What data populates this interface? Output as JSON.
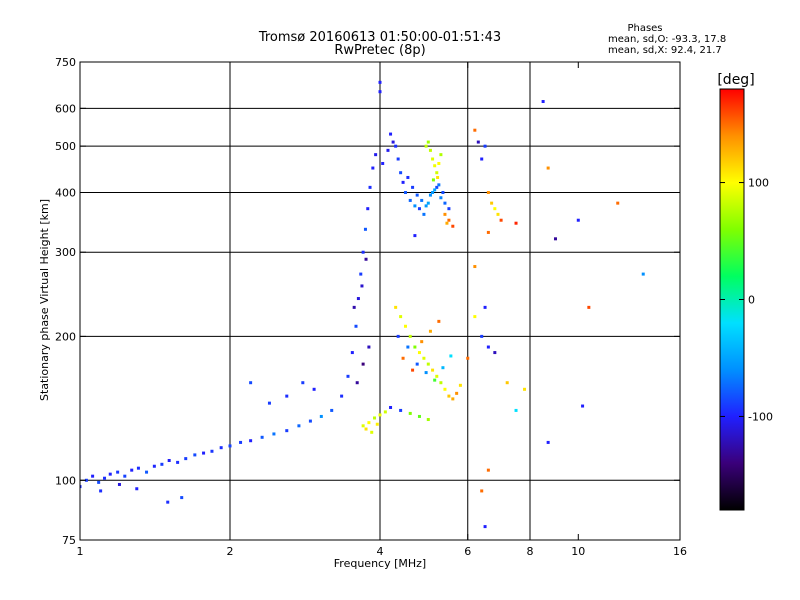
{
  "chart_data": {
    "type": "scatter",
    "title": "Tromsø 20160613 01:50:00-01:51:43",
    "subtitle": "RwPretec (8p)",
    "xlabel": "Frequency [MHz]",
    "ylabel": "Stationary phase Virtual Height [km]",
    "x_scale": "log",
    "y_scale": "log",
    "xlim": [
      1,
      16
    ],
    "ylim": [
      75,
      750
    ],
    "x_ticks": [
      1,
      2,
      4,
      6,
      8,
      10,
      16
    ],
    "x_tick_labels": [
      "1",
      "2",
      "4",
      "6",
      "8",
      "10",
      "16"
    ],
    "x_gridlines": [
      2,
      4,
      6,
      8
    ],
    "y_ticks": [
      75,
      100,
      200,
      300,
      400,
      500,
      600,
      750
    ],
    "y_tick_labels": [
      "75",
      "100",
      "200",
      "300",
      "400",
      "500",
      "600",
      "750"
    ],
    "y_gridlines": [
      100,
      200,
      300,
      400,
      500,
      600
    ],
    "grid": true,
    "colorbar": {
      "label": "[deg]",
      "range": [
        -180,
        180
      ],
      "ticks": [
        100,
        0,
        -100
      ],
      "tick_labels": [
        "100",
        "0",
        "-100"
      ],
      "colormap": [
        "#000000",
        "#3a007a",
        "#2020ff",
        "#0090ff",
        "#00e0ff",
        "#00ff60",
        "#80ff00",
        "#ffff00",
        "#ff9000",
        "#ff0000"
      ]
    },
    "legend": {
      "header": "Phases",
      "lines": [
        "mean, sd,O: -93.3, 17.8",
        "mean, sd,X:  92.4, 21.7"
      ]
    },
    "series": [
      {
        "points": [
          [
            1.0,
            97,
            -95
          ],
          [
            1.03,
            100,
            -90
          ],
          [
            1.06,
            102,
            -100
          ],
          [
            1.09,
            99,
            -85
          ],
          [
            1.12,
            101,
            -95
          ],
          [
            1.15,
            103,
            -100
          ],
          [
            1.19,
            104,
            -92
          ],
          [
            1.23,
            102,
            -88
          ],
          [
            1.27,
            105,
            -100
          ],
          [
            1.31,
            106,
            -95
          ],
          [
            1.36,
            104,
            -80
          ],
          [
            1.41,
            107,
            -98
          ],
          [
            1.46,
            108,
            -90
          ],
          [
            1.51,
            110,
            -102
          ],
          [
            1.57,
            109,
            -95
          ],
          [
            1.63,
            111,
            -90
          ],
          [
            1.7,
            113,
            -85
          ],
          [
            1.77,
            114,
            -100
          ],
          [
            1.84,
            115,
            -92
          ],
          [
            1.92,
            117,
            -95
          ],
          [
            2.0,
            118,
            -88
          ],
          [
            2.1,
            120,
            -90
          ],
          [
            2.2,
            121,
            -100
          ],
          [
            2.32,
            123,
            -80
          ],
          [
            2.45,
            125,
            -70
          ],
          [
            2.6,
            127,
            -90
          ],
          [
            2.75,
            130,
            -75
          ],
          [
            2.9,
            133,
            -85
          ],
          [
            3.05,
            136,
            -60
          ],
          [
            3.2,
            140,
            -80
          ],
          [
            3.35,
            150,
            -95
          ],
          [
            3.45,
            165,
            -90
          ],
          [
            3.52,
            185,
            -100
          ],
          [
            3.58,
            210,
            -85
          ],
          [
            3.62,
            240,
            -110
          ],
          [
            3.66,
            270,
            -90
          ],
          [
            3.7,
            300,
            -95
          ],
          [
            3.74,
            335,
            -80
          ],
          [
            3.78,
            370,
            -100
          ],
          [
            3.82,
            410,
            -95
          ],
          [
            3.87,
            450,
            -100
          ],
          [
            3.92,
            480,
            -105
          ],
          [
            3.6,
            160,
            -130
          ],
          [
            3.7,
            175,
            -140
          ],
          [
            3.8,
            190,
            -120
          ],
          [
            3.55,
            230,
            -125
          ],
          [
            3.68,
            255,
            -115
          ],
          [
            3.75,
            290,
            -130
          ],
          [
            2.6,
            150,
            -95
          ],
          [
            2.8,
            160,
            -90
          ],
          [
            2.95,
            155,
            -100
          ],
          [
            2.2,
            160,
            -85
          ],
          [
            2.4,
            145,
            -90
          ],
          [
            1.5,
            90,
            -95
          ],
          [
            1.6,
            92,
            -85
          ],
          [
            1.2,
            98,
            -110
          ],
          [
            1.3,
            96,
            -100
          ],
          [
            1.1,
            95,
            -95
          ],
          [
            4.2,
            530,
            -100
          ],
          [
            4.3,
            500,
            -95
          ],
          [
            4.35,
            470,
            -90
          ],
          [
            4.4,
            440,
            -85
          ],
          [
            4.45,
            420,
            -100
          ],
          [
            4.5,
            400,
            -80
          ],
          [
            4.6,
            385,
            -75
          ],
          [
            4.7,
            375,
            -60
          ],
          [
            4.8,
            370,
            -90
          ],
          [
            4.9,
            360,
            -70
          ],
          [
            5.0,
            380,
            -50
          ],
          [
            5.1,
            400,
            -55
          ],
          [
            5.2,
            410,
            -85
          ],
          [
            5.3,
            390,
            -65
          ],
          [
            5.4,
            380,
            -75
          ],
          [
            5.5,
            370,
            -90
          ],
          [
            4.25,
            510,
            -110
          ],
          [
            4.15,
            490,
            -105
          ],
          [
            4.05,
            460,
            -100
          ],
          [
            4.55,
            430,
            -95
          ],
          [
            4.65,
            410,
            -90
          ],
          [
            4.75,
            395,
            -80
          ],
          [
            4.85,
            385,
            -70
          ],
          [
            4.95,
            375,
            -55
          ],
          [
            5.05,
            395,
            -60
          ],
          [
            5.15,
            405,
            -50
          ],
          [
            5.25,
            415,
            -70
          ],
          [
            5.35,
            400,
            -85
          ],
          [
            5.0,
            510,
            70
          ],
          [
            5.05,
            490,
            80
          ],
          [
            5.1,
            470,
            90
          ],
          [
            5.15,
            455,
            95
          ],
          [
            5.2,
            440,
            85
          ],
          [
            5.25,
            460,
            100
          ],
          [
            5.3,
            480,
            75
          ],
          [
            4.95,
            500,
            80
          ],
          [
            5.12,
            425,
            60
          ],
          [
            5.22,
            430,
            110
          ],
          [
            5.4,
            360,
            140
          ],
          [
            5.5,
            350,
            150
          ],
          [
            5.6,
            340,
            160
          ],
          [
            5.45,
            345,
            130
          ],
          [
            4.7,
            325,
            -100
          ],
          [
            4.3,
            230,
            110
          ],
          [
            4.4,
            220,
            90
          ],
          [
            4.5,
            210,
            100
          ],
          [
            4.6,
            200,
            80
          ],
          [
            4.7,
            190,
            60
          ],
          [
            4.8,
            185,
            100
          ],
          [
            4.9,
            180,
            90
          ],
          [
            5.0,
            175,
            80
          ],
          [
            5.1,
            170,
            110
          ],
          [
            5.2,
            165,
            90
          ],
          [
            5.3,
            160,
            80
          ],
          [
            5.4,
            155,
            100
          ],
          [
            5.5,
            150,
            120
          ],
          [
            5.6,
            148,
            130
          ],
          [
            5.7,
            152,
            140
          ],
          [
            5.8,
            158,
            110
          ],
          [
            4.35,
            200,
            -90
          ],
          [
            4.55,
            190,
            -70
          ],
          [
            4.75,
            175,
            -80
          ],
          [
            4.95,
            168,
            -60
          ],
          [
            5.15,
            162,
            40
          ],
          [
            5.35,
            172,
            -40
          ],
          [
            5.55,
            182,
            -20
          ],
          [
            4.45,
            180,
            150
          ],
          [
            4.65,
            170,
            160
          ],
          [
            4.85,
            195,
            140
          ],
          [
            5.05,
            205,
            130
          ],
          [
            5.25,
            215,
            150
          ],
          [
            3.7,
            130,
            90
          ],
          [
            3.8,
            132,
            100
          ],
          [
            3.9,
            135,
            80
          ],
          [
            4.0,
            137,
            95
          ],
          [
            4.1,
            139,
            85
          ],
          [
            3.75,
            128,
            110
          ],
          [
            3.85,
            126,
            90
          ],
          [
            3.95,
            131,
            105
          ],
          [
            4.2,
            142,
            -100
          ],
          [
            4.4,
            140,
            -90
          ],
          [
            4.6,
            138,
            60
          ],
          [
            4.8,
            136,
            50
          ],
          [
            5.0,
            134,
            70
          ],
          [
            6.2,
            540,
            150
          ],
          [
            6.3,
            510,
            -120
          ],
          [
            6.4,
            470,
            -100
          ],
          [
            6.5,
            500,
            -90
          ],
          [
            6.6,
            400,
            140
          ],
          [
            6.7,
            380,
            120
          ],
          [
            6.8,
            370,
            100
          ],
          [
            6.9,
            360,
            110
          ],
          [
            6.6,
            330,
            150
          ],
          [
            7.0,
            350,
            160
          ],
          [
            7.5,
            345,
            170
          ],
          [
            8.5,
            620,
            -100
          ],
          [
            8.7,
            450,
            140
          ],
          [
            9.0,
            320,
            -130
          ],
          [
            10.0,
            350,
            -100
          ],
          [
            10.5,
            230,
            160
          ],
          [
            12.0,
            380,
            150
          ],
          [
            13.5,
            270,
            -60
          ],
          [
            10.2,
            143,
            -100
          ],
          [
            8.7,
            120,
            -100
          ],
          [
            7.5,
            140,
            -20
          ],
          [
            6.4,
            95,
            150
          ],
          [
            6.5,
            80,
            -100
          ],
          [
            6.6,
            105,
            150
          ],
          [
            4.0,
            680,
            -100
          ],
          [
            4.0,
            650,
            -100
          ],
          [
            6.2,
            280,
            140
          ],
          [
            6.2,
            220,
            100
          ],
          [
            6.4,
            200,
            -90
          ],
          [
            6.6,
            190,
            -100
          ],
          [
            6.8,
            185,
            -120
          ],
          [
            7.2,
            160,
            120
          ],
          [
            7.8,
            155,
            110
          ],
          [
            6.0,
            180,
            150
          ],
          [
            6.5,
            230,
            -100
          ]
        ]
      }
    ]
  }
}
